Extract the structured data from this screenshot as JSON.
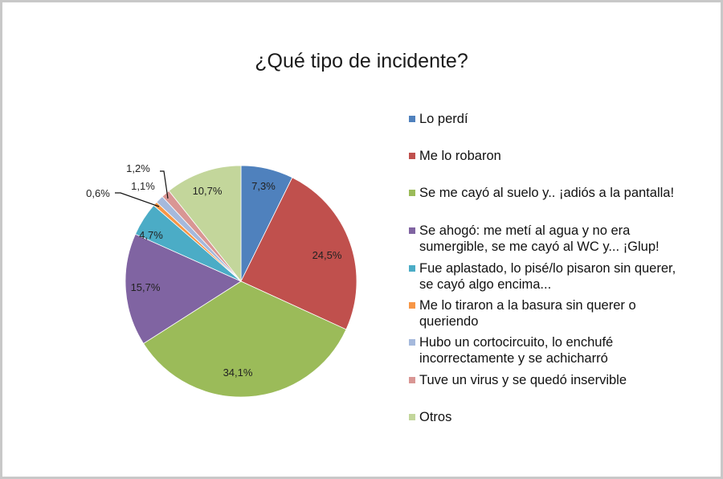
{
  "chart_data": {
    "type": "pie",
    "title": "¿Qué tipo de incidente?",
    "categories": [
      "Lo perdí",
      "Me lo robaron",
      "Se me cayó al suelo y.. ¡adiós a la pantalla!",
      "Se ahogó: me metí al agua y no era sumergible, se me cayó al WC y... ¡Glup!",
      "Fue aplastado, lo pisé/lo pisaron sin querer, se cayó algo encima...",
      "Me lo tiraron a la basura sin querer o queriendo",
      "Hubo un cortocircuito, lo enchufé incorrectamente y se achicharró",
      "Tuve un virus y se quedó inservible",
      "Otros"
    ],
    "values": [
      7.3,
      24.5,
      34.1,
      15.7,
      4.7,
      0.6,
      1.1,
      1.2,
      10.7
    ],
    "data_labels": [
      "7,3%",
      "24,5%",
      "34,1%",
      "15,7%",
      "4,7%",
      "0,6%",
      "1,1%",
      "1,2%",
      "10,7%"
    ],
    "colors": [
      "#4F81BD",
      "#C0504D",
      "#9BBB59",
      "#8064A2",
      "#4BACC6",
      "#F79646",
      "#A5B9DC",
      "#D99694",
      "#C3D69B"
    ],
    "unit": "%",
    "legend_position": "right",
    "start_angle_deg": 0,
    "direction": "clockwise"
  },
  "title": "¿Qué tipo de incidente?",
  "legend": [
    {
      "label": "Lo perdí",
      "color": "#4F81BD"
    },
    {
      "label": "Me lo robaron",
      "color": "#C0504D"
    },
    {
      "label": "Se me cayó al suelo y.. ¡adiós a la pantalla!",
      "color": "#9BBB59"
    },
    {
      "label": "Se ahogó: me metí al agua y no era\nsumergible, se me cayó al WC y... ¡Glup!",
      "color": "#8064A2"
    },
    {
      "label": "Fue aplastado, lo pisé/lo pisaron sin querer,\nse cayó algo encima...",
      "color": "#4BACC6"
    },
    {
      "label": "Me lo tiraron a la basura sin querer o\nqueriendo",
      "color": "#F79646"
    },
    {
      "label": "Hubo un cortocircuito, lo enchufé\nincorrectamente y se achicharró",
      "color": "#A5B9DC"
    },
    {
      "label": "Tuve un virus y se quedó inservible",
      "color": "#D99694"
    },
    {
      "label": "Otros",
      "color": "#C3D69B"
    }
  ]
}
